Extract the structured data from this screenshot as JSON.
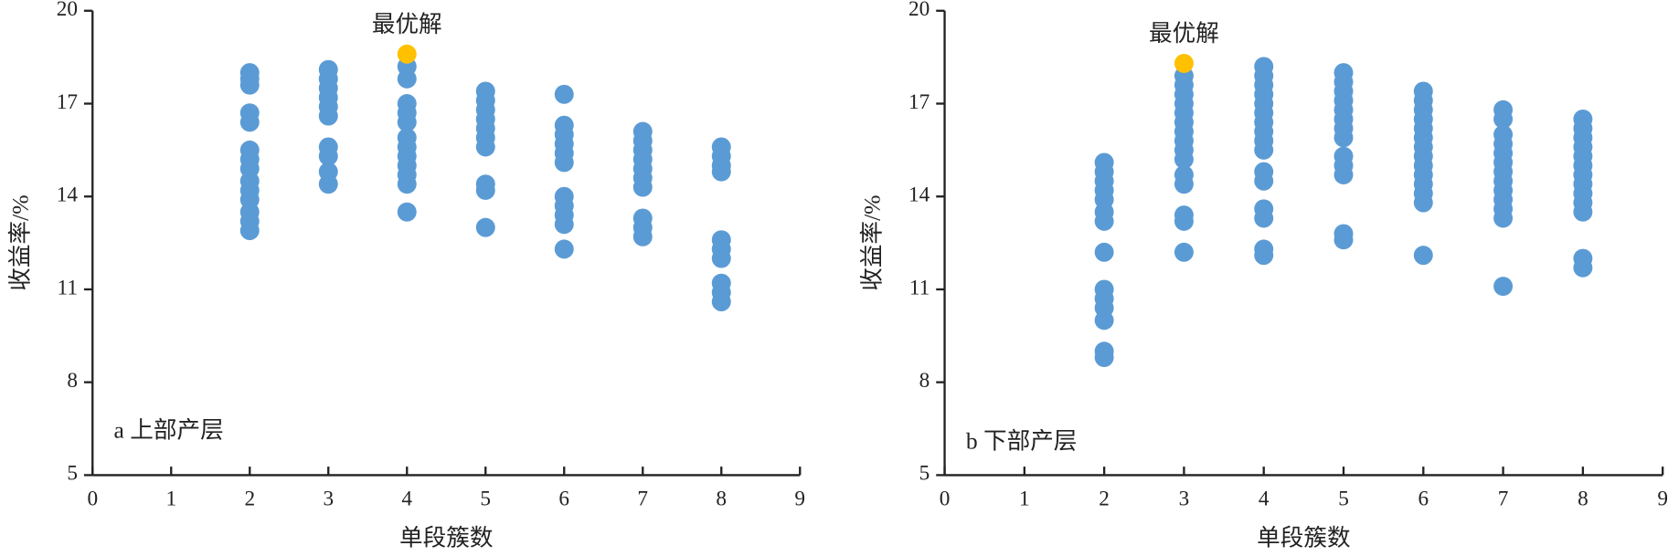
{
  "chart_data": [
    {
      "type": "scatter",
      "panel_label": "a 上部产层",
      "xlabel": "单段簇数",
      "ylabel": "收益率/%",
      "xlim": [
        0,
        9
      ],
      "ylim": [
        5,
        20
      ],
      "xticks": [
        0,
        1,
        2,
        3,
        4,
        5,
        6,
        7,
        8,
        9
      ],
      "yticks": [
        5,
        8,
        11,
        14,
        17,
        20
      ],
      "points": {
        "color": "#5b9bd5",
        "x": [
          2,
          2,
          2,
          2,
          2,
          2,
          2,
          2,
          2,
          2,
          2,
          2,
          2,
          2,
          3,
          3,
          3,
          3,
          3,
          3,
          3,
          3,
          3,
          3,
          4,
          4,
          4,
          4,
          4,
          4,
          4,
          4,
          4,
          4,
          4,
          4,
          5,
          5,
          5,
          5,
          5,
          5,
          5,
          5,
          5,
          5,
          6,
          6,
          6,
          6,
          6,
          6,
          6,
          6,
          6,
          6,
          6,
          7,
          7,
          7,
          7,
          7,
          7,
          7,
          7,
          7,
          7,
          8,
          8,
          8,
          8,
          8,
          8,
          8,
          8,
          8,
          8
        ],
        "y": [
          18.0,
          17.8,
          17.6,
          16.7,
          16.4,
          15.5,
          15.2,
          14.9,
          14.5,
          14.2,
          13.9,
          13.5,
          13.2,
          12.9,
          18.1,
          17.8,
          17.5,
          17.2,
          16.9,
          16.6,
          15.6,
          15.3,
          14.8,
          14.4,
          18.2,
          17.8,
          17.0,
          16.7,
          16.4,
          15.9,
          15.6,
          15.3,
          15.0,
          14.7,
          14.4,
          13.5,
          17.4,
          17.1,
          16.8,
          16.5,
          16.2,
          15.9,
          15.6,
          14.4,
          14.2,
          13.0,
          17.3,
          16.3,
          16.0,
          15.7,
          15.4,
          15.1,
          14.0,
          13.7,
          13.4,
          13.1,
          12.3,
          16.1,
          15.8,
          15.5,
          15.2,
          14.9,
          14.6,
          14.3,
          13.3,
          13.0,
          12.7,
          15.6,
          15.3,
          15.0,
          14.8,
          12.6,
          12.3,
          12.0,
          11.2,
          10.9,
          10.6
        ]
      },
      "optimum": {
        "label": "最优解",
        "x": 4,
        "y": 18.6,
        "color": "#ffc000"
      }
    },
    {
      "type": "scatter",
      "panel_label": "b 下部产层",
      "xlabel": "单段簇数",
      "ylabel": "收益率/%",
      "xlim": [
        0,
        9
      ],
      "ylim": [
        5,
        20
      ],
      "xticks": [
        0,
        1,
        2,
        3,
        4,
        5,
        6,
        7,
        8,
        9
      ],
      "yticks": [
        5,
        8,
        11,
        14,
        17,
        20
      ],
      "points": {
        "color": "#5b9bd5",
        "x": [
          2,
          2,
          2,
          2,
          2,
          2,
          2,
          2,
          2,
          2,
          2,
          2,
          2,
          2,
          3,
          3,
          3,
          3,
          3,
          3,
          3,
          3,
          3,
          3,
          3,
          3,
          3,
          3,
          3,
          4,
          4,
          4,
          4,
          4,
          4,
          4,
          4,
          4,
          4,
          4,
          4,
          4,
          4,
          4,
          4,
          5,
          5,
          5,
          5,
          5,
          5,
          5,
          5,
          5,
          5,
          5,
          5,
          5,
          6,
          6,
          6,
          6,
          6,
          6,
          6,
          6,
          6,
          6,
          6,
          6,
          6,
          6,
          7,
          7,
          7,
          7,
          7,
          7,
          7,
          7,
          7,
          7,
          7,
          7,
          7,
          8,
          8,
          8,
          8,
          8,
          8,
          8,
          8,
          8,
          8,
          8,
          8,
          8
        ],
        "y": [
          15.1,
          14.8,
          14.5,
          14.2,
          13.9,
          13.5,
          13.2,
          12.2,
          11.0,
          10.7,
          10.4,
          10.0,
          9.0,
          8.8,
          17.9,
          17.6,
          17.3,
          17.0,
          16.7,
          16.4,
          16.1,
          15.8,
          15.5,
          15.2,
          14.7,
          14.4,
          13.4,
          13.2,
          12.2,
          18.2,
          17.9,
          17.6,
          17.3,
          17.0,
          16.7,
          16.4,
          16.1,
          15.8,
          15.5,
          14.8,
          14.5,
          13.6,
          13.3,
          12.3,
          12.1,
          18.0,
          17.7,
          17.4,
          17.1,
          16.8,
          16.5,
          16.2,
          15.9,
          15.3,
          15.0,
          14.7,
          12.8,
          12.6,
          17.4,
          17.1,
          16.8,
          16.5,
          16.2,
          15.9,
          15.6,
          15.3,
          15.0,
          14.7,
          14.4,
          14.1,
          13.8,
          12.1,
          16.8,
          16.5,
          16.0,
          15.7,
          15.4,
          15.1,
          14.8,
          14.5,
          14.2,
          13.9,
          13.6,
          13.3,
          11.1,
          16.5,
          16.2,
          15.9,
          15.6,
          15.3,
          15.0,
          14.7,
          14.4,
          14.1,
          13.8,
          13.5,
          12.0,
          11.7
        ]
      },
      "optimum": {
        "label": "最优解",
        "x": 3,
        "y": 18.3,
        "color": "#ffc000"
      }
    }
  ]
}
